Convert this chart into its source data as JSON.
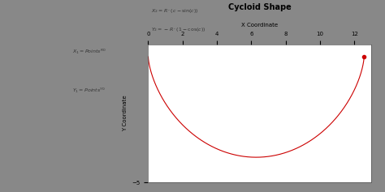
{
  "title": "Cycloid Shape",
  "xlabel": "X Coordinate",
  "ylabel": "Y Coordinate",
  "R": 2.0,
  "theta_end": 6.283185307,
  "line_color": "#cc0000",
  "dot_color": "#cc0000",
  "bg_color": "#ffffff",
  "outer_bg": "#c8c8c8",
  "panel_bg": "#e8eef4",
  "xlim": [
    0,
    13
  ],
  "ylim": [
    -5,
    0.5
  ],
  "xticks": [
    0,
    2,
    4,
    6,
    8,
    10,
    12
  ],
  "ytick_label": "-5",
  "title_fontsize": 7,
  "label_fontsize": 5,
  "tick_fontsize": 5,
  "formula_text_color": "#333333",
  "left_panel_color": "#dce6f0"
}
